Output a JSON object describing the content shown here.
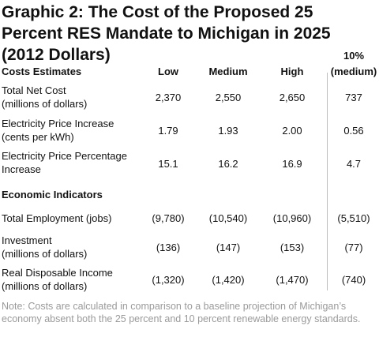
{
  "title": "Graphic 2: The Cost of the Proposed 25 Percent RES Mandate to Michigan in 2025 (2012 Dollars)",
  "header": {
    "label": "Costs Estimates",
    "low": "Low",
    "medium": "Medium",
    "high": "High",
    "ten_line1": "10%",
    "ten_line2": "(medium)"
  },
  "rows": [
    {
      "label1": "Total Net Cost",
      "label2": "(millions of dollars)",
      "low": "2,370",
      "medium": "2,550",
      "high": "2,650",
      "ten": "737"
    },
    {
      "label1": "Electricity Price Increase",
      "label2": "(cents per kWh)",
      "low": "1.79",
      "medium": "1.93",
      "high": "2.00",
      "ten": "0.56"
    },
    {
      "label1": "Electricity Price Percentage",
      "label2": "Increase",
      "low": "15.1",
      "medium": "16.2",
      "high": "16.9",
      "ten": "4.7"
    }
  ],
  "section2": "Economic Indicators",
  "rows2": [
    {
      "label1": "Total Employment (jobs)",
      "label2": "",
      "low": "(9,780)",
      "medium": "(10,540)",
      "high": "(10,960)",
      "ten": "(5,510)"
    },
    {
      "label1": "Investment",
      "label2": "(millions of dollars)",
      "low": "(136)",
      "medium": "(147)",
      "high": "(153)",
      "ten": "(77)"
    },
    {
      "label1": "Real Disposable Income",
      "label2": "(millions of dollars)",
      "low": "(1,320)",
      "medium": "(1,420)",
      "high": "(1,470)",
      "ten": "(740)"
    }
  ],
  "note": "Note: Costs are calculated in comparison to a baseline projection of Michigan’s economy absent both the 25 percent and 10 percent renewable energy standards."
}
